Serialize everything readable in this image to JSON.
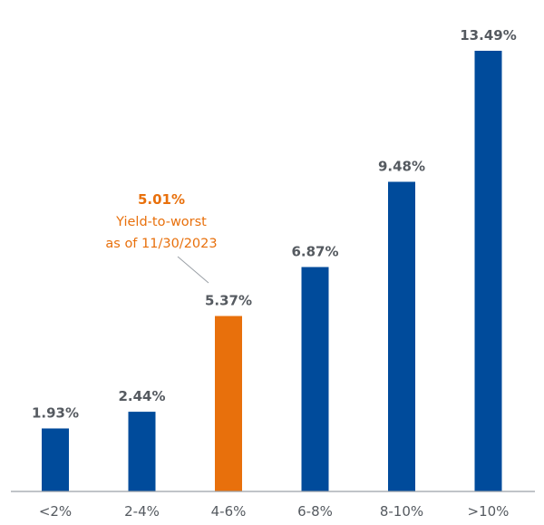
{
  "chart_data": {
    "type": "bar",
    "categories": [
      "<2%",
      "2-4%",
      "4-6%",
      "6-8%",
      "8-10%",
      ">10%"
    ],
    "values": [
      1.93,
      2.44,
      5.37,
      6.87,
      9.48,
      13.49
    ],
    "value_labels": [
      "1.93%",
      "2.44%",
      "5.37%",
      "6.87%",
      "9.48%",
      "13.49%"
    ],
    "ylim": [
      0,
      14.6
    ],
    "grid": false,
    "highlight_index": 2,
    "annotation": {
      "value": "5.01%",
      "line1": "Yield-to-worst",
      "line2": "as of 11/30/2023",
      "points_to": "4-6%"
    },
    "colors": {
      "bar": "#004b9b",
      "highlight": "#e8700c",
      "axis": "#9aa0a6",
      "label_text": "#555a60"
    }
  }
}
